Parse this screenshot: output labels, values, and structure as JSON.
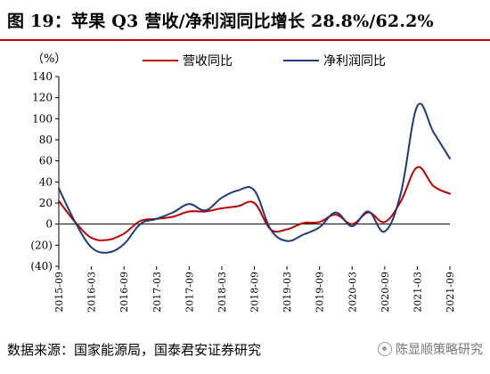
{
  "title": "图 19：苹果 Q3 营收/净利润同比增长 28.8%/62.2%",
  "footer": {
    "source": "数据来源：国家能源局，国泰君安证券研究",
    "watermark": "陈显顺策略研究"
  },
  "chart_data": {
    "type": "line",
    "title": "",
    "ylabel": "（%）",
    "xlabel": "",
    "ylim": [
      -40,
      140
    ],
    "yticks": [
      -40,
      -20,
      0,
      20,
      40,
      60,
      80,
      100,
      120,
      140
    ],
    "ytick_labels": [
      "(40)",
      "(20)",
      "0",
      "20",
      "40",
      "60",
      "80",
      "100",
      "120",
      "140"
    ],
    "x_tick_labels": [
      "2015-09",
      "2016-03",
      "2016-09",
      "2017-03",
      "2017-09",
      "2018-03",
      "2018-09",
      "2019-03",
      "2019-09",
      "2020-03",
      "2020-09",
      "2021-03",
      "2021-09"
    ],
    "grid": false,
    "legend_position": "top-center",
    "x": [
      "2015-09",
      "2015-12",
      "2016-03",
      "2016-06",
      "2016-09",
      "2016-12",
      "2017-03",
      "2017-06",
      "2017-09",
      "2017-12",
      "2018-03",
      "2018-06",
      "2018-09",
      "2018-12",
      "2019-03",
      "2019-06",
      "2019-09",
      "2019-12",
      "2020-03",
      "2020-06",
      "2020-09",
      "2020-12",
      "2021-03",
      "2021-06",
      "2021-09"
    ],
    "series": [
      {
        "name": "营收同比",
        "color": "#c00000",
        "values": [
          22,
          2,
          -13,
          -15,
          -9,
          3,
          5,
          7,
          12,
          12,
          15,
          17,
          20,
          -5,
          -5,
          1,
          2,
          9,
          0,
          11,
          2,
          22,
          54,
          36,
          28.8
        ]
      },
      {
        "name": "净利润同比",
        "color": "#1f3a7a",
        "values": [
          34,
          2,
          -22,
          -27,
          -19,
          0,
          5,
          11,
          19,
          13,
          25,
          32,
          32,
          -5,
          -16,
          -10,
          -3,
          11,
          -2,
          12,
          -7,
          30,
          112,
          87,
          62.2
        ]
      }
    ]
  }
}
